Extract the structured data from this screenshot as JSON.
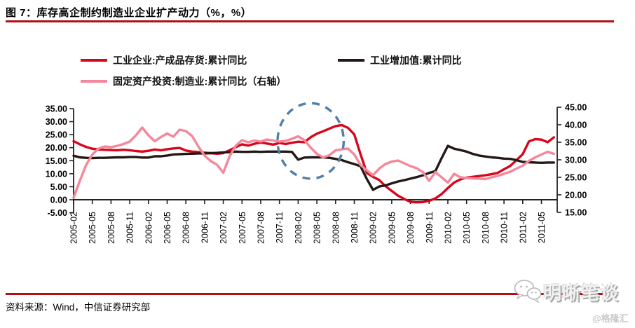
{
  "header": {
    "title": "图 7：库存高企制约制造业企业扩产动力（%，%）"
  },
  "source": {
    "text": "资料来源：Wind，中信证券研究部"
  },
  "watermark": {
    "name": "明晰笔谈",
    "handle": "@格隆汇"
  },
  "colors": {
    "rule_red": "#B00F14",
    "axis": "#222222",
    "annotation": "#4E7FAA",
    "watermark_gray": "#c9c9c9"
  },
  "chart_data": {
    "type": "line",
    "title": "库存高企制约制造业企业扩产动力（%，%）",
    "legend_position": "top",
    "grid": false,
    "left_axis": {
      "ticks": [
        "35.00",
        "30.00",
        "25.00",
        "20.00",
        "15.00",
        "10.00",
        "5.00",
        "0.00",
        "-5.00"
      ],
      "ylim": [
        -5,
        35
      ]
    },
    "right_axis": {
      "ticks": [
        "45.00",
        "40.00",
        "35.00",
        "30.00",
        "25.00",
        "20.00",
        "15.00"
      ],
      "ylim": [
        15,
        45
      ]
    },
    "x_tick_labels": [
      "2005-02",
      "2005-05",
      "2005-08",
      "2005-11",
      "2006-02",
      "2006-05",
      "2006-08",
      "2006-11",
      "2007-02",
      "2007-05",
      "2007-08",
      "2007-11",
      "2008-02",
      "2008-05",
      "2008-08",
      "2008-11",
      "2009-02",
      "2009-05",
      "2009-08",
      "2009-11",
      "2010-02",
      "2010-05",
      "2010-08",
      "2010-11",
      "2011-02",
      "2011-05"
    ],
    "months": [
      "2005-02",
      "2005-03",
      "2005-04",
      "2005-05",
      "2005-06",
      "2005-07",
      "2005-08",
      "2005-09",
      "2005-10",
      "2005-11",
      "2005-12",
      "2006-01",
      "2006-02",
      "2006-03",
      "2006-04",
      "2006-05",
      "2006-06",
      "2006-07",
      "2006-08",
      "2006-09",
      "2006-10",
      "2006-11",
      "2006-12",
      "2007-01",
      "2007-02",
      "2007-03",
      "2007-04",
      "2007-05",
      "2007-06",
      "2007-07",
      "2007-08",
      "2007-09",
      "2007-10",
      "2007-11",
      "2007-12",
      "2008-01",
      "2008-02",
      "2008-03",
      "2008-04",
      "2008-05",
      "2008-06",
      "2008-07",
      "2008-08",
      "2008-09",
      "2008-10",
      "2008-11",
      "2008-12",
      "2009-01",
      "2009-02",
      "2009-03",
      "2009-04",
      "2009-05",
      "2009-06",
      "2009-07",
      "2009-08",
      "2009-09",
      "2009-10",
      "2009-11",
      "2009-12",
      "2010-01",
      "2010-02",
      "2010-03",
      "2010-04",
      "2010-05",
      "2010-06",
      "2010-07",
      "2010-08",
      "2010-09",
      "2010-10",
      "2010-11",
      "2010-12",
      "2011-01",
      "2011-02",
      "2011-03",
      "2011-04",
      "2011-05",
      "2011-06",
      "2011-07"
    ],
    "series": [
      {
        "name": "工业企业:产成品存货:累计同比",
        "axis": "left",
        "color": "#D9051C",
        "values": [
          22.5,
          21.3,
          20.3,
          19.6,
          19.3,
          19.2,
          19.1,
          19.0,
          19.2,
          19.0,
          18.7,
          18.5,
          18.8,
          19.3,
          19.0,
          19.4,
          19.7,
          19.9,
          18.9,
          18.5,
          18.3,
          18.1,
          17.9,
          17.7,
          17.9,
          19.0,
          20.2,
          21.3,
          20.8,
          21.5,
          22.0,
          21.6,
          21.2,
          21.8,
          21.4,
          21.9,
          22.3,
          22.1,
          24.0,
          25.4,
          26.3,
          27.3,
          28.3,
          28.7,
          27.6,
          25.1,
          17.5,
          10.3,
          8.8,
          7.6,
          5.2,
          3.4,
          1.6,
          0.3,
          -0.8,
          -1.0,
          -0.9,
          -0.4,
          0.5,
          2.2,
          4.5,
          6.6,
          7.8,
          8.5,
          8.8,
          9.1,
          9.4,
          9.8,
          10.3,
          11.7,
          13.0,
          15.2,
          17.5,
          22.4,
          23.3,
          23.1,
          22.1,
          24.0
        ]
      },
      {
        "name": "工业增加值:累计同比",
        "axis": "left",
        "color": "#231815",
        "values": [
          16.9,
          16.3,
          16.1,
          16.0,
          16.1,
          16.1,
          16.2,
          16.3,
          16.3,
          16.4,
          16.4,
          16.2,
          16.2,
          16.7,
          16.7,
          17.0,
          17.4,
          17.5,
          17.6,
          17.7,
          17.8,
          17.8,
          17.9,
          18.0,
          18.2,
          18.3,
          18.5,
          18.4,
          18.4,
          18.5,
          18.4,
          18.5,
          18.5,
          18.5,
          18.5,
          18.4,
          15.4,
          16.2,
          16.3,
          16.3,
          16.3,
          16.1,
          15.7,
          15.2,
          14.4,
          13.7,
          12.9,
          8.0,
          3.8,
          5.1,
          5.5,
          6.3,
          7.0,
          7.5,
          8.1,
          8.7,
          9.4,
          10.3,
          11.0,
          16.0,
          20.7,
          19.6,
          19.1,
          18.5,
          17.6,
          17.0,
          16.6,
          16.3,
          16.1,
          15.8,
          15.7,
          15.2,
          14.5,
          14.4,
          14.3,
          14.2,
          14.3,
          14.3
        ]
      },
      {
        "name": "固定资产投资:制造业:累计同比（右轴）",
        "axis": "right",
        "color": "#F5879B",
        "values": [
          19.2,
          24.0,
          28.5,
          31.5,
          33.2,
          33.8,
          33.6,
          34.0,
          34.5,
          35.2,
          37.0,
          39.2,
          37.0,
          35.3,
          36.5,
          37.5,
          36.6,
          38.6,
          38.2,
          36.8,
          33.8,
          31.2,
          29.6,
          28.6,
          26.3,
          31.0,
          34.0,
          35.6,
          35.0,
          35.5,
          35.2,
          35.8,
          35.5,
          35.2,
          35.4,
          36.0,
          36.7,
          35.6,
          33.5,
          31.7,
          30.7,
          31.3,
          32.7,
          33.0,
          33.2,
          31.5,
          28.5,
          27.0,
          25.6,
          27.5,
          28.8,
          29.5,
          29.8,
          29.0,
          28.2,
          27.6,
          26.5,
          24.0,
          26.5,
          25.0,
          23.5,
          26.0,
          25.0,
          24.8,
          24.7,
          24.6,
          24.5,
          25.0,
          25.4,
          26.0,
          26.6,
          27.5,
          28.3,
          29.7,
          30.7,
          31.5,
          32.3,
          31.7
        ]
      }
    ],
    "annotation": {
      "type": "dashed-ellipse",
      "center_month": "2008-04",
      "center_left_value": 22.6,
      "rx_months": 5.3,
      "ry_left_units": 14.5,
      "color": "#4E7FAA"
    }
  }
}
